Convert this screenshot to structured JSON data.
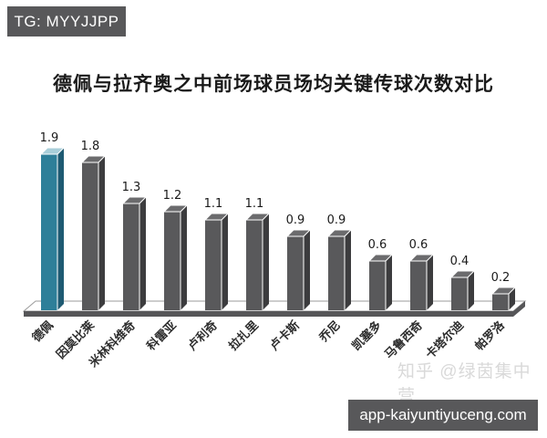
{
  "header": {
    "tg_label": "TG: MYYJJPP"
  },
  "footer": {
    "url_label": "app-kaiyuntiyuceng.com"
  },
  "watermark": {
    "text": "知乎 @绿茵集中营"
  },
  "chart_data": {
    "type": "bar",
    "style": "3d-column",
    "title": "德佩与拉齐奥之中前场球员场均关键传球次数对比",
    "categories": [
      "德佩",
      "因莫比莱",
      "米林科维奇",
      "科雷亚",
      "卢利奇",
      "拉扎里",
      "卢卡斯",
      "乔尼",
      "凯塞多",
      "马鲁西奇",
      "卡塔尔迪",
      "帕罗洛"
    ],
    "values": [
      1.9,
      1.8,
      1.3,
      1.2,
      1.1,
      1.1,
      0.9,
      0.9,
      0.6,
      0.6,
      0.4,
      0.2
    ],
    "value_labels_shown": true,
    "highlight_index": 0,
    "xlabel": "",
    "ylabel": "",
    "ylim": [
      0,
      2.0
    ],
    "grid": false,
    "legend": "none",
    "colors": {
      "highlight_front": "#2e7f99",
      "highlight_top": "#a8ced9",
      "highlight_side": "#1e5a72",
      "bar_front": "#59595b",
      "bar_top": "#6b6b6d",
      "bar_side": "#3c3c3e",
      "edge": "#ffffff",
      "floor_face": "#565658",
      "floor_line": "#9b9b9b",
      "value_label": "#1a1a1a",
      "category_label": "#2e2e2e"
    }
  }
}
